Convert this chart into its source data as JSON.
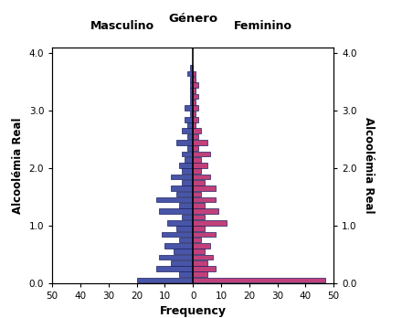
{
  "title": "Género",
  "left_label": "Masculino",
  "right_label": "Feminino",
  "ylabel_left": "Alcoolémia Real",
  "ylabel_right": "Alcoolémia Real",
  "xlabel": "Frequency",
  "bar_color_male": "#4855a8",
  "bar_color_female": "#c2407a",
  "bar_edgecolor": "#1a2060",
  "ylim": [
    0.0,
    4.1
  ],
  "xlim": 50,
  "yticks": [
    0.0,
    1.0,
    2.0,
    3.0,
    4.0
  ],
  "bin_centers": [
    0.05,
    0.15,
    0.25,
    0.35,
    0.45,
    0.55,
    0.65,
    0.75,
    0.85,
    0.95,
    1.05,
    1.15,
    1.25,
    1.35,
    1.45,
    1.55,
    1.65,
    1.75,
    1.85,
    1.95,
    2.05,
    2.15,
    2.25,
    2.35,
    2.45,
    2.55,
    2.65,
    2.75,
    2.85,
    2.95,
    3.05,
    3.15,
    3.25,
    3.35,
    3.45,
    3.55,
    3.65,
    3.75,
    3.85,
    3.95
  ],
  "bin_width": 0.1,
  "male_counts": [
    20,
    5,
    13,
    8,
    12,
    7,
    10,
    5,
    11,
    6,
    9,
    4,
    12,
    5,
    13,
    6,
    8,
    4,
    8,
    4,
    5,
    3,
    4,
    2,
    6,
    2,
    4,
    2,
    3,
    1,
    3,
    1,
    1,
    1,
    1,
    1,
    2,
    1,
    0,
    0
  ],
  "female_counts": [
    47,
    5,
    8,
    5,
    7,
    4,
    6,
    3,
    8,
    4,
    12,
    4,
    9,
    4,
    8,
    3,
    8,
    4,
    6,
    3,
    5,
    3,
    6,
    2,
    5,
    2,
    3,
    1,
    2,
    1,
    2,
    1,
    2,
    1,
    2,
    1,
    1,
    0,
    0,
    0
  ],
  "background_color": "#ffffff"
}
